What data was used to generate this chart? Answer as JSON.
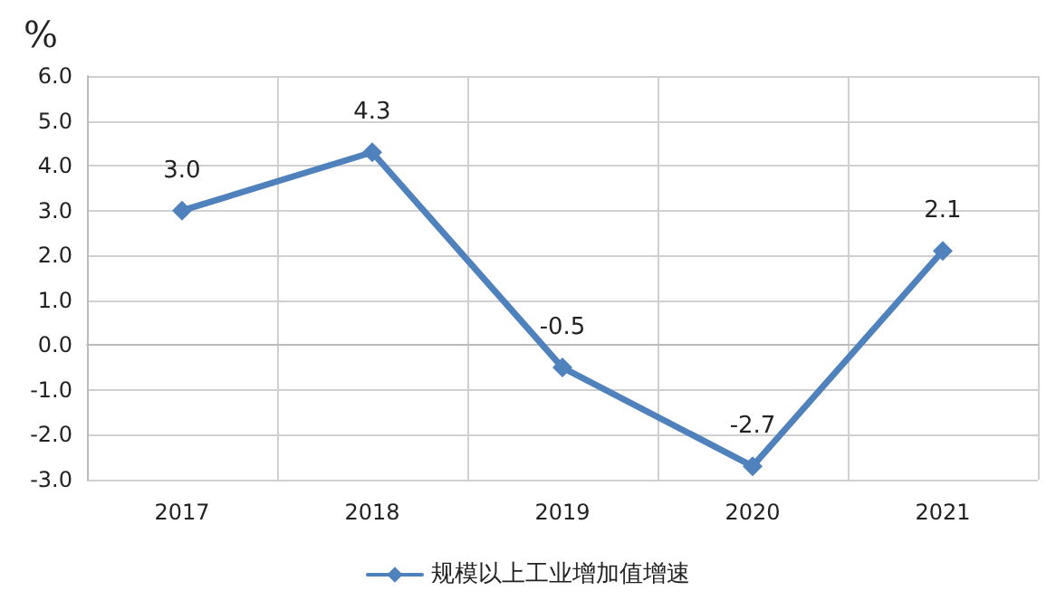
{
  "chart_data": {
    "type": "line",
    "ylabel": "%",
    "categories": [
      "2017",
      "2018",
      "2019",
      "2020",
      "2021"
    ],
    "series": [
      {
        "name": "规模以上工业增加值增速",
        "color": "#4f81bd",
        "values": [
          3.0,
          4.3,
          -0.5,
          -2.7,
          2.1
        ],
        "value_labels": [
          "3.0",
          "4.3",
          "-0.5",
          "-2.7",
          "2.1"
        ]
      }
    ],
    "ylim": [
      -3,
      6
    ],
    "yticks": [
      {
        "value": -3,
        "label": "-3.0"
      },
      {
        "value": -2,
        "label": "-2.0"
      },
      {
        "value": -1,
        "label": "-1.0"
      },
      {
        "value": 0,
        "label": "0.0"
      },
      {
        "value": 1,
        "label": "1.0"
      },
      {
        "value": 2,
        "label": "2.0"
      },
      {
        "value": 3,
        "label": "3.0"
      },
      {
        "value": 4,
        "label": "4.0"
      },
      {
        "value": 5,
        "label": "5.0"
      },
      {
        "value": 6,
        "label": "6.0"
      }
    ],
    "grid": true,
    "legend": "bottom",
    "marker": "diamond",
    "line_style": "solid"
  }
}
